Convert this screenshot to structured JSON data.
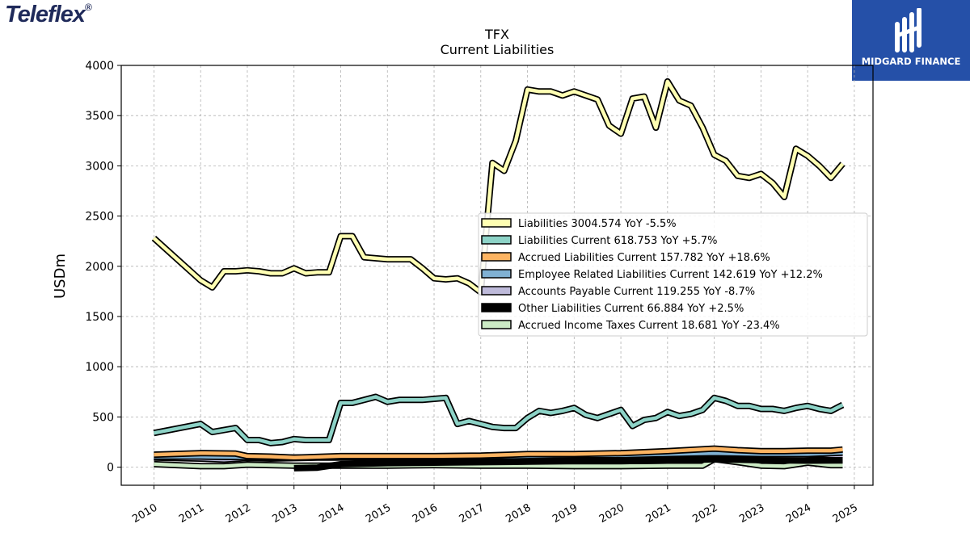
{
  "header": {
    "left_logo": "Teleflex",
    "right_logo_text": "MIDGARD FINANCE"
  },
  "chart_data": {
    "type": "line",
    "title": "TFX",
    "subtitle": "Current  Liabilities",
    "ylabel": "USDm",
    "xlabel": "",
    "xlim": [
      2009.3,
      2025.4
    ],
    "ylim": [
      -180,
      4000
    ],
    "yticks": [
      0,
      500,
      1000,
      1500,
      2000,
      2500,
      3000,
      3500,
      4000
    ],
    "xticks": [
      "2010",
      "2011",
      "2012",
      "2013",
      "2014",
      "2015",
      "2016",
      "2017",
      "2018",
      "2019",
      "2020",
      "2021",
      "2022",
      "2023",
      "2024",
      "2025"
    ],
    "grid": true,
    "legend_position": "center-right",
    "series": [
      {
        "name": "Liabilities",
        "legend": "Liabilities  3004.574 YoY -5.5%",
        "color": "#ffffb3",
        "x": [
          2010.0,
          2011.0,
          2011.25,
          2011.5,
          2011.75,
          2012.0,
          2012.25,
          2012.5,
          2012.75,
          2013.0,
          2013.25,
          2013.5,
          2013.75,
          2014.0,
          2014.25,
          2014.5,
          2014.75,
          2015.0,
          2015.25,
          2015.5,
          2015.75,
          2016.0,
          2016.25,
          2016.5,
          2016.75,
          2017.0,
          2017.25,
          2017.5,
          2017.75,
          2018.0,
          2018.25,
          2018.5,
          2018.75,
          2019.0,
          2019.25,
          2019.5,
          2019.75,
          2020.0,
          2020.25,
          2020.5,
          2020.75,
          2021.0,
          2021.25,
          2021.5,
          2021.75,
          2022.0,
          2022.25,
          2022.5,
          2022.75,
          2023.0,
          2023.25,
          2023.5,
          2023.75,
          2024.0,
          2024.25,
          2024.5,
          2024.75
        ],
        "y": [
          2280,
          1860,
          1790,
          1950,
          1950,
          1960,
          1950,
          1930,
          1930,
          1980,
          1930,
          1940,
          1940,
          2300,
          2300,
          2090,
          2080,
          2070,
          2070,
          2070,
          1980,
          1880,
          1870,
          1880,
          1830,
          1740,
          3030,
          2950,
          3250,
          3760,
          3740,
          3740,
          3700,
          3740,
          3700,
          3660,
          3400,
          3320,
          3670,
          3690,
          3380,
          3840,
          3650,
          3600,
          3380,
          3110,
          3050,
          2900,
          2880,
          2920,
          2830,
          2690,
          3170,
          3100,
          3000,
          2880,
          3020
        ]
      },
      {
        "name": "Liabilities Current",
        "legend": "Liabilities Current  618.753 YoY +5.7%",
        "color": "#8dd3c7",
        "x": [
          2010.0,
          2011.0,
          2011.25,
          2011.5,
          2011.75,
          2012.0,
          2012.25,
          2012.5,
          2012.75,
          2013.0,
          2013.25,
          2013.5,
          2013.75,
          2014.0,
          2014.25,
          2014.5,
          2014.75,
          2015.0,
          2015.25,
          2015.5,
          2015.75,
          2016.0,
          2016.25,
          2016.5,
          2016.75,
          2017.0,
          2017.25,
          2017.5,
          2017.75,
          2018.0,
          2018.25,
          2018.5,
          2018.75,
          2019.0,
          2019.25,
          2019.5,
          2019.75,
          2020.0,
          2020.25,
          2020.5,
          2020.75,
          2021.0,
          2021.25,
          2021.5,
          2021.75,
          2022.0,
          2022.25,
          2022.5,
          2022.75,
          2023.0,
          2023.25,
          2023.5,
          2023.75,
          2024.0,
          2024.25,
          2024.5,
          2024.75
        ],
        "y": [
          340,
          430,
          350,
          370,
          390,
          270,
          270,
          240,
          250,
          280,
          270,
          270,
          270,
          640,
          640,
          670,
          700,
          650,
          670,
          670,
          670,
          680,
          690,
          430,
          460,
          430,
          400,
          390,
          390,
          490,
          560,
          540,
          560,
          590,
          520,
          490,
          530,
          570,
          410,
          470,
          490,
          550,
          510,
          530,
          570,
          690,
          660,
          610,
          610,
          580,
          580,
          560,
          590,
          610,
          580,
          560,
          620
        ]
      },
      {
        "name": "Accrued Liabilities Current",
        "legend": "Accrued Liabilities Current  157.782 YoY +18.6%",
        "color": "#fdb462",
        "x": [
          2010.0,
          2011.0,
          2011.75,
          2012.0,
          2012.5,
          2013.0,
          2014.0,
          2015.0,
          2016.0,
          2017.0,
          2018.0,
          2019.0,
          2020.0,
          2021.0,
          2022.0,
          2022.5,
          2023.0,
          2023.5,
          2024.0,
          2024.5,
          2024.75
        ],
        "y": [
          125,
          140,
          135,
          110,
          105,
          95,
          110,
          110,
          110,
          115,
          130,
          130,
          140,
          160,
          185,
          170,
          160,
          160,
          165,
          165,
          175
        ]
      },
      {
        "name": "Employee Related Liabilities Current",
        "legend": "Employee Related Liabilities Current  142.619 YoY +12.2%",
        "color": "#80b1d3",
        "x": [
          2010.0,
          2011.0,
          2012.0,
          2013.0,
          2014.0,
          2015.0,
          2016.0,
          2017.0,
          2018.0,
          2019.0,
          2020.0,
          2021.0,
          2022.0,
          2023.0,
          2024.0,
          2024.75
        ],
        "y": [
          105,
          105,
          100,
          95,
          100,
          100,
          100,
          105,
          110,
          120,
          120,
          130,
          140,
          130,
          130,
          145
        ]
      },
      {
        "name": "Accounts Payable Current",
        "legend": "Accounts Payable Current  119.255 YoY -8.7%",
        "color": "#bebada",
        "x": [
          2010.0,
          2011.0,
          2011.5,
          2012.0,
          2012.5,
          2013.0,
          2013.5,
          2014.0,
          2015.0,
          2016.0,
          2017.0,
          2018.0,
          2019.0,
          2020.0,
          2021.0,
          2022.0,
          2022.5,
          2023.0,
          2023.5,
          2024.0,
          2024.5,
          2024.75
        ],
        "y": [
          95,
          85,
          75,
          90,
          85,
          90,
          95,
          95,
          100,
          95,
          100,
          110,
          115,
          115,
          125,
          140,
          130,
          140,
          150,
          130,
          120,
          120
        ]
      },
      {
        "name": "Other Liabilities Current",
        "legend": "Other Liabilities Current  66.884 YoY +2.5%",
        "color": "#000000",
        "x": [
          2013.0,
          2013.5,
          2014.0,
          2015.0,
          2016.0,
          2017.0,
          2018.0,
          2019.0,
          2020.0,
          2021.0,
          2022.0,
          2023.0,
          2024.0,
          2024.75
        ],
        "y": [
          -10,
          -5,
          30,
          40,
          45,
          50,
          55,
          60,
          60,
          65,
          80,
          70,
          65,
          67
        ]
      },
      {
        "name": "Accrued Income Taxes Current",
        "legend": "Accrued Income Taxes Current  18.681 YoY -23.4%",
        "color": "#ccebc5",
        "x": [
          2010.0,
          2011.0,
          2011.5,
          2012.0,
          2012.5,
          2013.0,
          2014.0,
          2015.0,
          2016.0,
          2017.0,
          2018.0,
          2019.0,
          2020.0,
          2021.0,
          2021.75,
          2022.0,
          2022.5,
          2023.0,
          2023.5,
          2024.0,
          2024.5,
          2024.75
        ],
        "y": [
          30,
          10,
          10,
          25,
          20,
          15,
          15,
          15,
          20,
          15,
          15,
          10,
          10,
          15,
          15,
          80,
          50,
          15,
          10,
          45,
          20,
          20
        ]
      }
    ]
  }
}
